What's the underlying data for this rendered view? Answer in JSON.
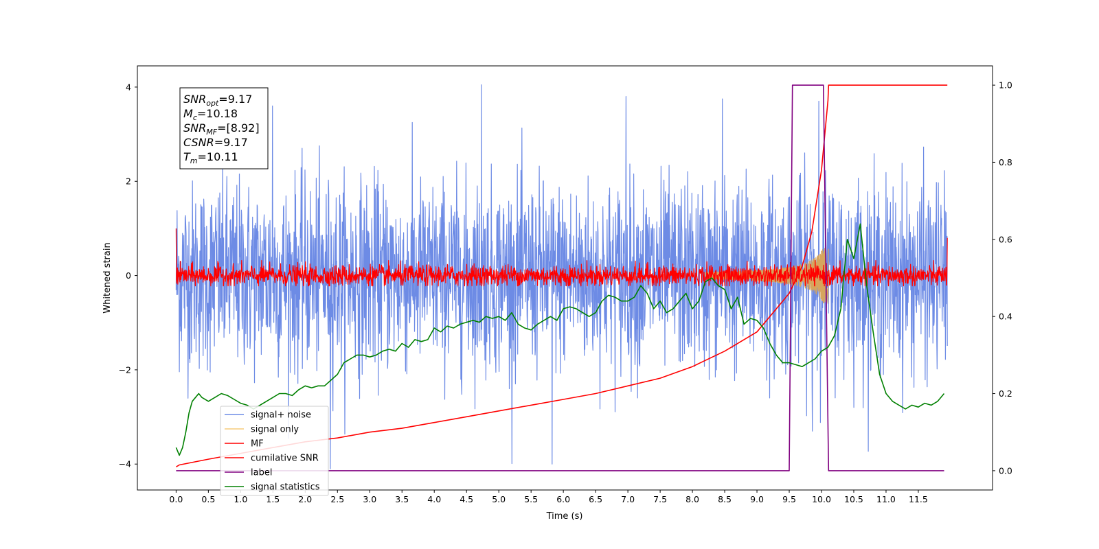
{
  "chart_data": {
    "type": "line",
    "title": "",
    "xlabel": "Time (s)",
    "ylabel": "Whitened strain",
    "xlim": [
      -0.6,
      12.65
    ],
    "ylim": [
      -4.55,
      4.45
    ],
    "y2lim": [
      -0.05,
      1.05
    ],
    "x_ticks": [
      0.0,
      0.5,
      1.0,
      1.5,
      2.0,
      2.5,
      3.0,
      3.5,
      4.0,
      4.5,
      5.0,
      5.5,
      6.0,
      6.5,
      7.0,
      7.5,
      8.0,
      8.5,
      9.0,
      9.5,
      10.0,
      10.5,
      11.0,
      11.5
    ],
    "x_tick_labels": [
      "0.0",
      "0.5",
      "1.0",
      "1.5",
      "2.0",
      "2.5",
      "3.0",
      "3.5",
      "4.0",
      "4.5",
      "5.0",
      "5.5",
      "6.0",
      "6.5",
      "7.0",
      "7.5",
      "8.0",
      "8.5",
      "9.0",
      "9.5",
      "10.0",
      "10.5",
      "11.0",
      "11.5"
    ],
    "y_ticks": [
      -4,
      -2,
      0,
      2,
      4
    ],
    "y_tick_labels": [
      "−4",
      "−2",
      "0",
      "2",
      "4"
    ],
    "y2_ticks": [
      0.0,
      0.2,
      0.4,
      0.6,
      0.8,
      1.0
    ],
    "y2_tick_labels": [
      "0.0",
      "0.2",
      "0.4",
      "0.6",
      "0.8",
      "1.0"
    ],
    "grid": false,
    "legend_position": "lower-left",
    "stats_box": [
      {
        "sym": "SNR",
        "sub": "opt",
        "val": "=9.17"
      },
      {
        "sym": "M",
        "sub": "c",
        "val": "=10.18"
      },
      {
        "sym": "SNR",
        "sub": "MF",
        "val": "=[8.92]"
      },
      {
        "sym": "CSNR",
        "sub": "",
        "val": "=9.17"
      },
      {
        "sym": "T",
        "sub": "m",
        "val": "=10.11"
      }
    ],
    "series": [
      {
        "name": "signal+ noise",
        "color": "#6d8be5",
        "axis": "left",
        "kind": "noise",
        "x_range": [
          0.0,
          11.95
        ],
        "band_center": 0.0,
        "typical_amplitude": 1.6,
        "max": 4.05,
        "min": -4.1
      },
      {
        "name": "signal only",
        "color": "#f5cc7a",
        "axis": "left",
        "kind": "chirp",
        "x_range": [
          8.2,
          10.11
        ],
        "peak_amplitude": 0.65,
        "peak_time": 10.05
      },
      {
        "name": "MF",
        "color": "#ff0000",
        "axis": "left",
        "kind": "noise",
        "x_range": [
          0.0,
          11.95
        ],
        "band_center": 0.0,
        "typical_amplitude": 0.25,
        "start_value": 1.0,
        "end_value": 0.8
      },
      {
        "name": "cumilative SNR",
        "color": "#ff0000",
        "axis": "right",
        "x": [
          0.0,
          0.05,
          0.5,
          1.0,
          1.5,
          2.0,
          2.5,
          3.0,
          3.5,
          4.0,
          4.5,
          5.0,
          5.5,
          6.0,
          6.5,
          7.0,
          7.5,
          8.0,
          8.5,
          9.0,
          9.5,
          9.7,
          9.85,
          10.0,
          10.05,
          10.1,
          10.11,
          11.95
        ],
        "y": [
          0.01,
          0.015,
          0.03,
          0.045,
          0.06,
          0.075,
          0.085,
          0.1,
          0.11,
          0.125,
          0.14,
          0.155,
          0.17,
          0.185,
          0.2,
          0.22,
          0.24,
          0.27,
          0.31,
          0.36,
          0.46,
          0.53,
          0.62,
          0.78,
          0.87,
          0.96,
          1.0,
          1.0
        ]
      },
      {
        "name": "label",
        "color": "#800080",
        "axis": "right",
        "x": [
          0.0,
          9.5,
          9.55,
          10.03,
          10.11,
          11.9
        ],
        "y": [
          0.0,
          0.0,
          1.0,
          1.0,
          0.0,
          0.0
        ]
      },
      {
        "name": "signal statistics",
        "color": "#008000",
        "axis": "right",
        "x": [
          0.0,
          0.05,
          0.1,
          0.15,
          0.2,
          0.25,
          0.3,
          0.35,
          0.4,
          0.5,
          0.6,
          0.7,
          0.8,
          0.9,
          1.0,
          1.1,
          1.2,
          1.3,
          1.4,
          1.5,
          1.6,
          1.7,
          1.8,
          1.9,
          2.0,
          2.1,
          2.2,
          2.3,
          2.4,
          2.5,
          2.6,
          2.7,
          2.8,
          2.9,
          3.0,
          3.1,
          3.2,
          3.3,
          3.4,
          3.5,
          3.6,
          3.7,
          3.8,
          3.9,
          4.0,
          4.1,
          4.2,
          4.3,
          4.4,
          4.5,
          4.6,
          4.7,
          4.8,
          4.9,
          5.0,
          5.1,
          5.2,
          5.3,
          5.4,
          5.5,
          5.6,
          5.7,
          5.8,
          5.9,
          6.0,
          6.1,
          6.2,
          6.3,
          6.4,
          6.5,
          6.6,
          6.7,
          6.8,
          6.9,
          7.0,
          7.1,
          7.2,
          7.3,
          7.4,
          7.5,
          7.6,
          7.7,
          7.8,
          7.9,
          8.0,
          8.1,
          8.2,
          8.3,
          8.4,
          8.5,
          8.6,
          8.7,
          8.8,
          8.9,
          9.0,
          9.1,
          9.2,
          9.3,
          9.4,
          9.5,
          9.6,
          9.7,
          9.8,
          9.9,
          10.0,
          10.1,
          10.2,
          10.3,
          10.4,
          10.5,
          10.6,
          10.7,
          10.8,
          10.9,
          11.0,
          11.1,
          11.2,
          11.3,
          11.4,
          11.5,
          11.6,
          11.7,
          11.8,
          11.9
        ],
        "y": [
          0.06,
          0.04,
          0.06,
          0.1,
          0.15,
          0.18,
          0.19,
          0.2,
          0.19,
          0.18,
          0.19,
          0.2,
          0.195,
          0.185,
          0.175,
          0.17,
          0.16,
          0.17,
          0.18,
          0.19,
          0.2,
          0.2,
          0.195,
          0.21,
          0.22,
          0.215,
          0.22,
          0.22,
          0.235,
          0.25,
          0.28,
          0.29,
          0.3,
          0.3,
          0.295,
          0.3,
          0.31,
          0.315,
          0.31,
          0.33,
          0.32,
          0.34,
          0.335,
          0.34,
          0.37,
          0.36,
          0.375,
          0.37,
          0.38,
          0.385,
          0.39,
          0.385,
          0.4,
          0.395,
          0.4,
          0.39,
          0.41,
          0.38,
          0.37,
          0.365,
          0.38,
          0.39,
          0.4,
          0.39,
          0.42,
          0.425,
          0.42,
          0.41,
          0.4,
          0.41,
          0.44,
          0.455,
          0.45,
          0.44,
          0.44,
          0.45,
          0.48,
          0.46,
          0.42,
          0.44,
          0.41,
          0.42,
          0.44,
          0.46,
          0.42,
          0.44,
          0.49,
          0.5,
          0.48,
          0.47,
          0.42,
          0.45,
          0.38,
          0.395,
          0.39,
          0.37,
          0.33,
          0.3,
          0.28,
          0.28,
          0.275,
          0.27,
          0.28,
          0.29,
          0.31,
          0.32,
          0.35,
          0.42,
          0.6,
          0.55,
          0.64,
          0.48,
          0.36,
          0.25,
          0.2,
          0.18,
          0.17,
          0.16,
          0.17,
          0.165,
          0.175,
          0.17,
          0.18,
          0.2
        ]
      }
    ]
  }
}
